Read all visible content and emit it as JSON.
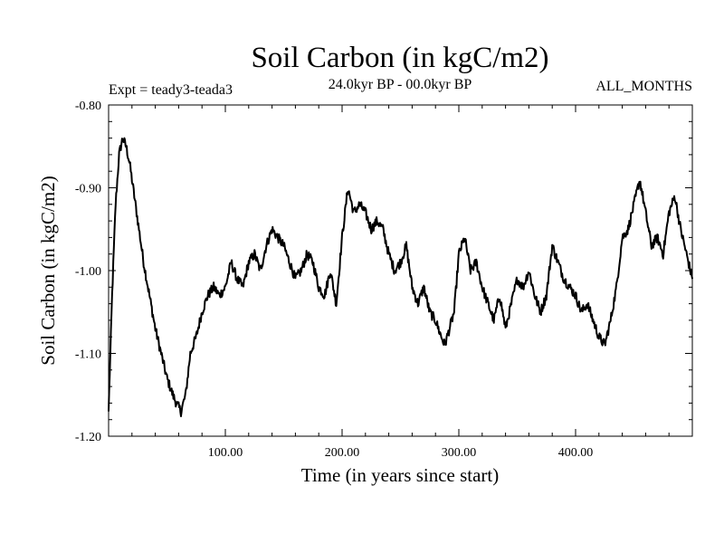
{
  "chart_data": {
    "type": "line",
    "title": "Soil Carbon (in kgC/m2)",
    "subtitle": "24.0kyr BP - 00.0kyr BP",
    "left_note": "Expt = teady3-teada3",
    "right_note": "ALL_MONTHS",
    "xlabel": "Time (in years since start)",
    "ylabel": "Soil Carbon (in kgC/m2)",
    "xlim": [
      0,
      500
    ],
    "ylim": [
      -1.2,
      -0.8
    ],
    "x_ticks": [
      100,
      200,
      300,
      400
    ],
    "x_tick_labels": [
      "100.00",
      "200.00",
      "300.00",
      "400.00"
    ],
    "y_ticks": [
      -0.8,
      -0.9,
      -1.0,
      -1.1,
      -1.2
    ],
    "y_tick_labels": [
      "-0.80",
      "-0.90",
      "-1.00",
      "-1.10",
      "-1.20"
    ],
    "series": [
      {
        "name": "Soil Carbon",
        "color": "#000000",
        "x": [
          0,
          3,
          6,
          9,
          12,
          15,
          18,
          22,
          26,
          30,
          35,
          40,
          45,
          50,
          55,
          58,
          62,
          66,
          70,
          75,
          80,
          85,
          90,
          95,
          100,
          105,
          110,
          115,
          120,
          125,
          130,
          135,
          140,
          145,
          150,
          155,
          160,
          165,
          170,
          175,
          180,
          185,
          190,
          195,
          200,
          205,
          210,
          215,
          220,
          225,
          230,
          235,
          240,
          245,
          250,
          255,
          260,
          265,
          270,
          275,
          280,
          285,
          288,
          292,
          296,
          300,
          305,
          310,
          315,
          320,
          325,
          330,
          335,
          340,
          345,
          350,
          355,
          360,
          365,
          370,
          375,
          380,
          385,
          390,
          395,
          400,
          405,
          410,
          415,
          420,
          425,
          430,
          435,
          440,
          445,
          450,
          455,
          460,
          465,
          470,
          475,
          480,
          485,
          490,
          495,
          500
        ],
        "y": [
          -1.17,
          -1.03,
          -0.92,
          -0.86,
          -0.84,
          -0.85,
          -0.87,
          -0.91,
          -0.95,
          -0.99,
          -1.03,
          -1.07,
          -1.1,
          -1.13,
          -1.15,
          -1.16,
          -1.17,
          -1.15,
          -1.1,
          -1.08,
          -1.05,
          -1.03,
          -1.02,
          -1.03,
          -1.02,
          -0.99,
          -1.01,
          -1.02,
          -0.99,
          -0.98,
          -1.0,
          -0.97,
          -0.95,
          -0.96,
          -0.97,
          -0.99,
          -1.01,
          -1.0,
          -0.98,
          -0.99,
          -1.02,
          -1.03,
          -1.0,
          -1.04,
          -0.96,
          -0.9,
          -0.93,
          -0.92,
          -0.93,
          -0.95,
          -0.94,
          -0.95,
          -0.98,
          -1.0,
          -0.99,
          -0.97,
          -1.02,
          -1.04,
          -1.02,
          -1.05,
          -1.06,
          -1.08,
          -1.09,
          -1.07,
          -1.05,
          -0.98,
          -0.96,
          -1.0,
          -0.99,
          -1.02,
          -1.04,
          -1.06,
          -1.03,
          -1.07,
          -1.04,
          -1.01,
          -1.02,
          -1.0,
          -1.03,
          -1.05,
          -1.03,
          -0.97,
          -0.99,
          -1.01,
          -1.02,
          -1.03,
          -1.05,
          -1.04,
          -1.06,
          -1.08,
          -1.09,
          -1.06,
          -1.02,
          -0.96,
          -0.95,
          -0.92,
          -0.89,
          -0.93,
          -0.97,
          -0.96,
          -0.98,
          -0.93,
          -0.91,
          -0.95,
          -0.98,
          -1.01
        ]
      }
    ]
  }
}
